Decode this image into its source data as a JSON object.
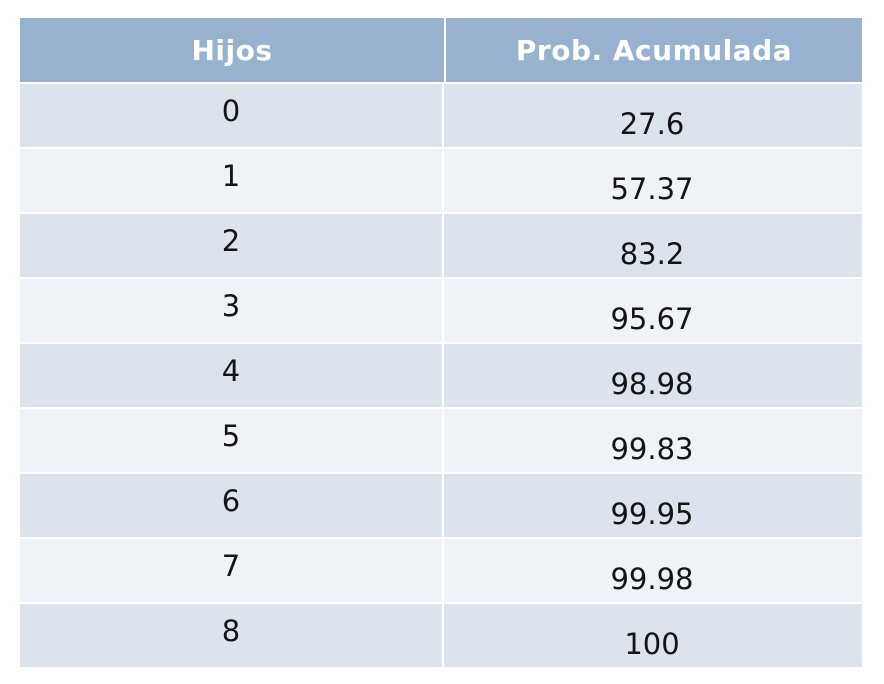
{
  "table": {
    "headers": [
      "Hijos",
      "Prob. Acumulada"
    ],
    "rows": [
      [
        "0",
        "27.6"
      ],
      [
        "1",
        "57.37"
      ],
      [
        "2",
        "83.2"
      ],
      [
        "3",
        "95.67"
      ],
      [
        "4",
        "98.98"
      ],
      [
        "5",
        "99.83"
      ],
      [
        "6",
        "99.95"
      ],
      [
        "7",
        "99.98"
      ],
      [
        "8",
        "100"
      ]
    ]
  },
  "colors": {
    "header_bg": "#97b1cf",
    "row_odd_bg": "#dde3ec",
    "row_even_bg": "#eff2f7",
    "text": "#141414",
    "header_text": "#ffffff"
  }
}
